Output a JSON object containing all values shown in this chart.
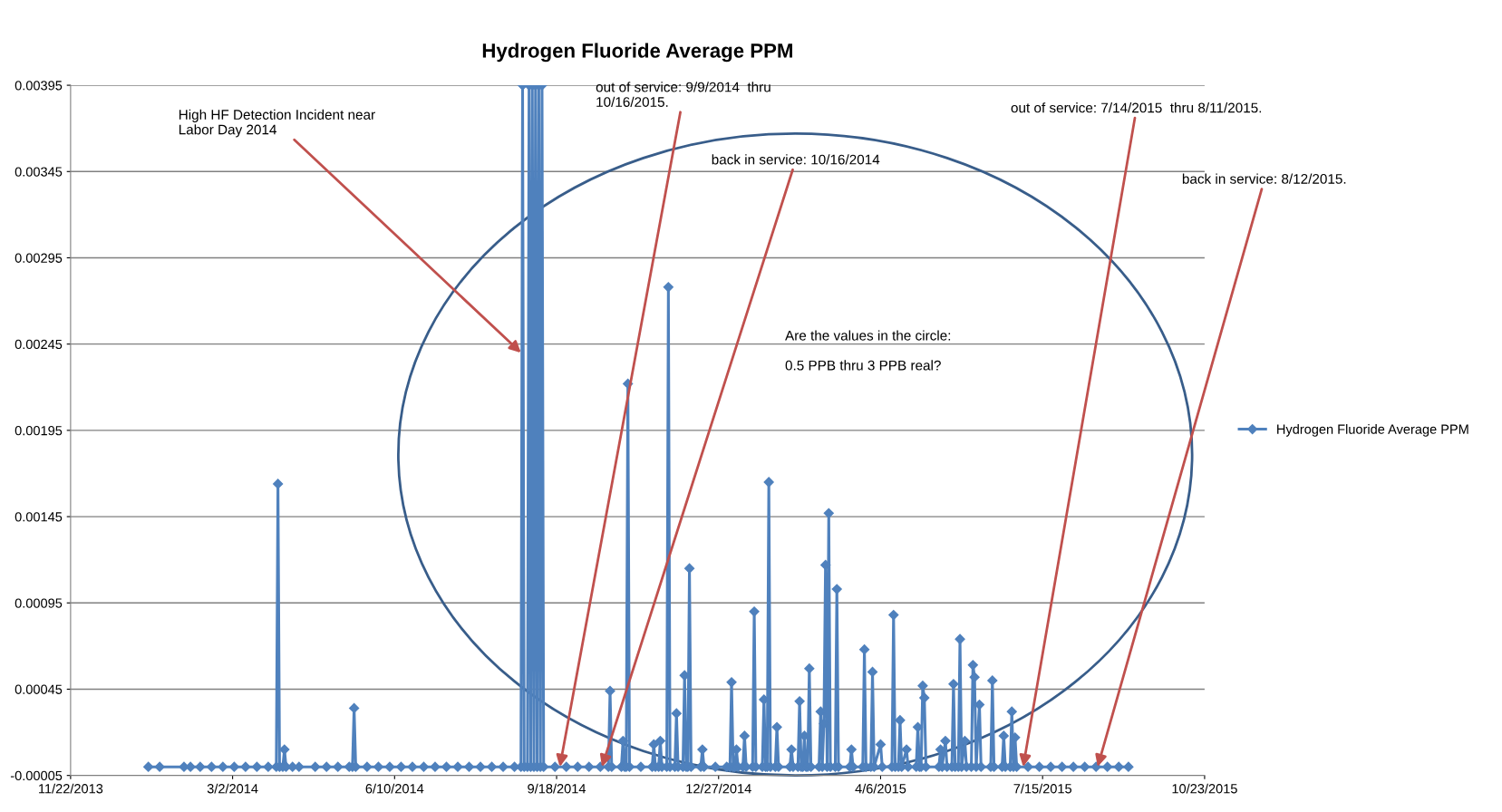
{
  "chart_data": {
    "type": "line",
    "title": "Hydrogen Fluoride Average PPM",
    "xlim": [
      "2013-11-22",
      "2015-10-23"
    ],
    "xticks": [
      {
        "value": "2013-11-22",
        "label": "11/22/2013"
      },
      {
        "value": "2014-03-02",
        "label": "3/2/2014"
      },
      {
        "value": "2014-06-10",
        "label": "6/10/2014"
      },
      {
        "value": "2014-09-18",
        "label": "9/18/2014"
      },
      {
        "value": "2014-12-27",
        "label": "12/27/2014"
      },
      {
        "value": "2015-04-06",
        "label": "4/6/2015"
      },
      {
        "value": "2015-07-15",
        "label": "7/15/2015"
      },
      {
        "value": "2015-10-23",
        "label": "10/23/2015"
      }
    ],
    "ylim": [
      -5e-05,
      0.00395
    ],
    "yticks": [
      {
        "value": -5e-05,
        "label": "-0.00005"
      },
      {
        "value": 0.00045,
        "label": "0.00045"
      },
      {
        "value": 0.00095,
        "label": "0.00095"
      },
      {
        "value": 0.00145,
        "label": "0.00145"
      },
      {
        "value": 0.00195,
        "label": "0.00195"
      },
      {
        "value": 0.00245,
        "label": "0.00245"
      },
      {
        "value": 0.00295,
        "label": "0.00295"
      },
      {
        "value": 0.00345,
        "label": "0.00345"
      },
      {
        "value": 0.00395,
        "label": "0.00395"
      }
    ],
    "grid": "y",
    "legend": "right",
    "marker": "diamond",
    "line_style": "solid",
    "annotations": [
      {
        "text": "High HF Detection Incident near\nLabor Day 2014",
        "x": "2014-08-27",
        "y": 0.0024
      },
      {
        "text": "out of service: 9/9/2014  thru\n10/16/2015.",
        "x": "2014-09-20",
        "y": 0
      },
      {
        "text": "back in service: 10/16/2014",
        "x": "2014-10-16",
        "y": 0
      },
      {
        "text": "Are the values in the circle:\n\n0.5 PPB thru 3 PPB real?"
      },
      {
        "text": "out of service: 7/14/2015  thru 8/11/2015.",
        "x": "2015-07-03",
        "y": 0
      },
      {
        "text": "back in service: 8/12/2015.",
        "x": "2015-08-18",
        "y": 0
      }
    ],
    "series": [
      {
        "name": "Hydrogen Fluoride Average PPM",
        "color": "#4f81bd",
        "x": [
          "2014-01-09",
          "2014-01-16",
          "2014-01-31",
          "2014-02-04",
          "2014-02-10",
          "2014-02-17",
          "2014-02-24",
          "2014-03-03",
          "2014-03-10",
          "2014-03-17",
          "2014-03-24",
          "2014-03-29",
          "2014-03-30",
          "2014-03-31",
          "2014-04-02",
          "2014-04-03",
          "2014-04-04",
          "2014-04-08",
          "2014-04-12",
          "2014-04-22",
          "2014-04-29",
          "2014-05-06",
          "2014-05-13",
          "2014-05-15",
          "2014-05-16",
          "2014-05-17",
          "2014-05-24",
          "2014-05-31",
          "2014-06-07",
          "2014-06-14",
          "2014-06-21",
          "2014-06-28",
          "2014-07-05",
          "2014-07-12",
          "2014-07-19",
          "2014-07-26",
          "2014-08-02",
          "2014-08-09",
          "2014-08-16",
          "2014-08-23",
          "2014-08-27",
          "2014-08-28",
          "2014-08-29",
          "2014-08-31",
          "2014-09-01",
          "2014-09-02",
          "2014-09-03",
          "2014-09-04",
          "2014-09-05",
          "2014-09-06",
          "2014-09-07",
          "2014-09-08",
          "2014-09-09",
          "2014-09-10",
          "2014-09-17",
          "2014-09-24",
          "2014-10-01",
          "2014-10-08",
          "2014-10-15",
          "2014-10-20",
          "2014-10-21",
          "2014-10-22",
          "2014-10-28",
          "2014-10-29",
          "2014-10-30",
          "2014-10-31",
          "2014-11-01",
          "2014-11-02",
          "2014-11-09",
          "2014-11-16",
          "2014-11-17",
          "2014-11-18",
          "2014-11-20",
          "2014-11-21",
          "2014-11-22",
          "2014-11-25",
          "2014-11-26",
          "2014-11-27",
          "2014-11-30",
          "2014-12-01",
          "2014-12-02",
          "2014-12-05",
          "2014-12-06",
          "2014-12-07",
          "2014-12-08",
          "2014-12-09",
          "2014-12-10",
          "2014-12-16",
          "2014-12-17",
          "2014-12-18",
          "2014-12-25",
          "2015-01-01",
          "2015-01-03",
          "2015-01-04",
          "2015-01-05",
          "2015-01-06",
          "2015-01-07",
          "2015-01-08",
          "2015-01-11",
          "2015-01-12",
          "2015-01-13",
          "2015-01-17",
          "2015-01-18",
          "2015-01-19",
          "2015-01-23",
          "2015-01-24",
          "2015-01-25",
          "2015-01-26",
          "2015-01-27",
          "2015-01-28",
          "2015-01-31",
          "2015-02-01",
          "2015-02-02",
          "2015-02-09",
          "2015-02-10",
          "2015-02-11",
          "2015-02-14",
          "2015-02-15",
          "2015-02-16",
          "2015-02-17",
          "2015-02-18",
          "2015-02-19",
          "2015-02-20",
          "2015-02-21",
          "2015-02-22",
          "2015-02-27",
          "2015-02-28",
          "2015-03-01",
          "2015-03-02",
          "2015-03-03",
          "2015-03-04",
          "2015-03-05",
          "2015-03-06",
          "2015-03-09",
          "2015-03-10",
          "2015-03-11",
          "2015-03-18",
          "2015-03-19",
          "2015-03-20",
          "2015-03-26",
          "2015-03-27",
          "2015-03-28",
          "2015-03-31",
          "2015-04-01",
          "2015-04-02",
          "2015-04-06",
          "2015-04-07",
          "2015-04-13",
          "2015-04-14",
          "2015-04-15",
          "2015-04-17",
          "2015-04-18",
          "2015-04-19",
          "2015-04-22",
          "2015-04-23",
          "2015-04-28",
          "2015-04-29",
          "2015-04-30",
          "2015-05-01",
          "2015-05-02",
          "2015-05-03",
          "2015-05-04",
          "2015-05-12",
          "2015-05-13",
          "2015-05-14",
          "2015-05-16",
          "2015-05-17",
          "2015-05-20",
          "2015-05-21",
          "2015-05-22",
          "2015-05-24",
          "2015-05-25",
          "2015-05-26",
          "2015-05-28",
          "2015-05-29",
          "2015-06-01",
          "2015-06-02",
          "2015-06-03",
          "2015-06-04",
          "2015-06-06",
          "2015-06-07",
          "2015-06-13",
          "2015-06-14",
          "2015-06-15",
          "2015-06-20",
          "2015-06-21",
          "2015-06-22",
          "2015-06-25",
          "2015-06-26",
          "2015-06-27",
          "2015-06-28",
          "2015-06-29",
          "2015-07-06",
          "2015-07-13",
          "2015-07-20",
          "2015-07-27",
          "2015-08-03",
          "2015-08-10",
          "2015-08-17",
          "2015-08-24",
          "2015-08-31",
          "2015-09-06"
        ],
        "values": [
          0,
          0,
          0,
          0,
          0,
          0,
          0,
          0,
          0,
          0,
          0,
          0,
          0.00164,
          0,
          0,
          0.0001,
          0,
          0,
          0,
          0,
          0,
          0,
          0,
          0,
          0.00034,
          0,
          0,
          0,
          0,
          0,
          0,
          0,
          0,
          0,
          0,
          0,
          0,
          0,
          0,
          0,
          0,
          0.00395,
          0,
          0,
          0.00395,
          0,
          0.00395,
          0,
          0.00395,
          0,
          0.00395,
          0,
          0.00395,
          0,
          0,
          0,
          0,
          0,
          0,
          0,
          0.00044,
          0,
          0,
          0.00015,
          0,
          0,
          0.00222,
          0,
          0,
          0,
          0.00013,
          0,
          0,
          0.00015,
          0,
          0,
          0.00278,
          0,
          0,
          0.00031,
          0,
          0,
          0.00053,
          0,
          0,
          0.00115,
          0,
          0,
          0.0001,
          0,
          0,
          0,
          0,
          0.00049,
          0,
          0,
          0.0001,
          0,
          0,
          0.00018,
          0,
          0,
          0.0009,
          0,
          0,
          0.00039,
          0,
          0,
          0.00165,
          0,
          0,
          0.00023,
          0,
          0,
          0.0001,
          0,
          0,
          0.00038,
          0,
          0,
          0.00018,
          0,
          0,
          0.00057,
          0,
          0,
          0.00032,
          0,
          0.00025,
          0.00117,
          0,
          0.00147,
          0,
          0,
          0.00103,
          0,
          0,
          0.0001,
          0,
          0,
          0.00068,
          0,
          0,
          0.00055,
          0,
          0.00013,
          0,
          0,
          0.00088,
          0,
          0,
          0.00027,
          0,
          0.0001,
          0,
          0,
          0.00023,
          0,
          0,
          0.00047,
          0.0004,
          0,
          0,
          0.0001,
          0,
          0.00015,
          0,
          0,
          0.00048,
          0,
          0,
          0.00074,
          0,
          0.00015,
          0,
          0,
          0.00059,
          0.00052,
          0,
          0.00036,
          0,
          0,
          0.0005,
          0,
          0,
          0.00018,
          0,
          0,
          0.00032,
          0,
          0.00017,
          0,
          0,
          0,
          0,
          0,
          0,
          0,
          0,
          0,
          0,
          0
        ]
      }
    ]
  }
}
